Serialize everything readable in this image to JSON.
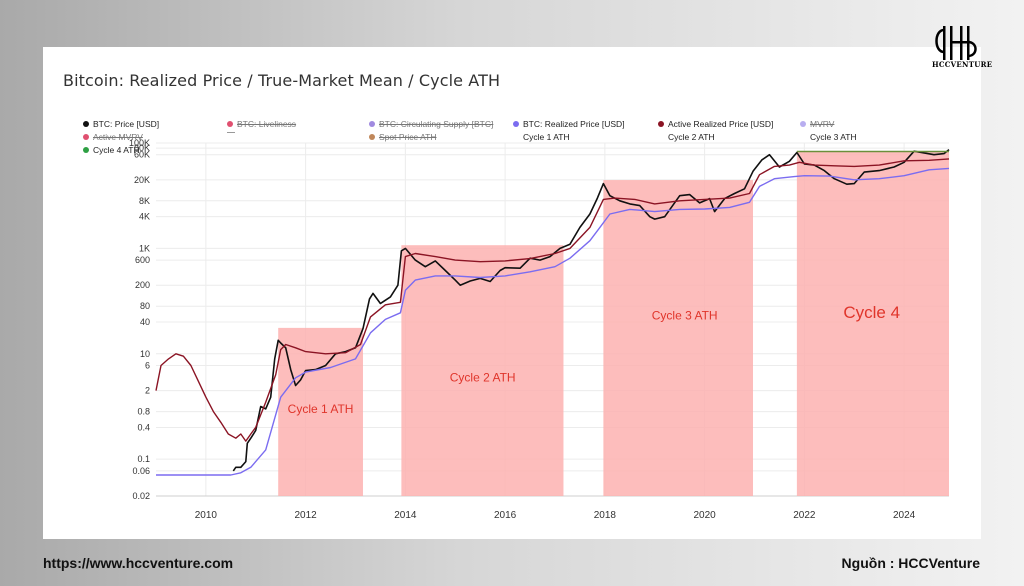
{
  "brand": {
    "logo_text": "HCCVENTURE"
  },
  "footer": {
    "url": "https://www.hccventure.com",
    "source": "Nguồn : HCCVenture"
  },
  "colors": {
    "price": "#111111",
    "realized_price": "#7b6cf0",
    "active_realized_price": "#8b1424",
    "spot_ath": "#6b8f3a",
    "cycle_fill": "#fdb2b0",
    "cycle_label": "#e0352b"
  },
  "chart_data": {
    "type": "line",
    "title": "Bitcoin: Realized Price / True-Market Mean / Cycle ATH",
    "y_scale": "log",
    "ylim": [
      0.02,
      100000
    ],
    "y_ticks": [
      {
        "v": 100000,
        "label": "100K"
      },
      {
        "v": 80000,
        "label": "80K"
      },
      {
        "v": 60000,
        "label": "60K"
      },
      {
        "v": 20000,
        "label": "20K"
      },
      {
        "v": 8000,
        "label": "8K"
      },
      {
        "v": 4000,
        "label": "4K"
      },
      {
        "v": 1000,
        "label": "1K"
      },
      {
        "v": 600,
        "label": "600"
      },
      {
        "v": 200,
        "label": "200"
      },
      {
        "v": 80,
        "label": "80"
      },
      {
        "v": 40,
        "label": "40"
      },
      {
        "v": 10,
        "label": "10"
      },
      {
        "v": 6,
        "label": "6"
      },
      {
        "v": 2,
        "label": "2"
      },
      {
        "v": 0.8,
        "label": "0.8"
      },
      {
        "v": 0.4,
        "label": "0.4"
      },
      {
        "v": 0.1,
        "label": "0.1"
      },
      {
        "v": 0.06,
        "label": "0.06"
      },
      {
        "v": 0.02,
        "label": "0.02"
      }
    ],
    "xlim": [
      2009.0,
      2024.9
    ],
    "x_ticks": [
      {
        "v": 2010,
        "label": "2010"
      },
      {
        "v": 2012,
        "label": "2012"
      },
      {
        "v": 2014,
        "label": "2014"
      },
      {
        "v": 2016,
        "label": "2016"
      },
      {
        "v": 2018,
        "label": "2018"
      },
      {
        "v": 2020,
        "label": "2020"
      },
      {
        "v": 2022,
        "label": "2022"
      },
      {
        "v": 2024,
        "label": "2024"
      }
    ],
    "grid": true,
    "legend": [
      {
        "label": "BTC: Price [USD]",
        "color": "#111111",
        "active": true
      },
      {
        "label": "BTC: Liveliness",
        "color": "#e05070",
        "active": false
      },
      {
        "label": "BTC: Circulating Supply [BTC]",
        "color": "#a08ae0",
        "active": false
      },
      {
        "label": "BTC: Realized Price [USD]",
        "color": "#7b6cf0",
        "active": true
      },
      {
        "label": "Active Realized Price [USD]",
        "color": "#8b1424",
        "active": true
      },
      {
        "label": "MVRV",
        "color": "#b8aef0",
        "active": false
      },
      {
        "label": "Active MVRV",
        "color": "#e05070",
        "active": false
      },
      {
        "label": "",
        "color": "#999999",
        "active": false,
        "dash": true
      },
      {
        "label": "Spot Price ATH",
        "color": "#c0875a",
        "active": false
      },
      {
        "label": "Cycle 1 ATH",
        "color": "",
        "active": true
      },
      {
        "label": "Cycle 2 ATH",
        "color": "",
        "active": true
      },
      {
        "label": "Cycle 3 ATH",
        "color": "",
        "active": true
      },
      {
        "label": "Cycle 4 ATH",
        "color": "#2ea043",
        "active": true
      }
    ],
    "cycles": [
      {
        "label": "Cycle 1 ATH",
        "x0": 2011.45,
        "x1": 2013.15,
        "y_top": 31,
        "label_x": 2012.3,
        "label_y": 0.75
      },
      {
        "label": "Cycle 2 ATH",
        "x0": 2013.92,
        "x1": 2017.17,
        "y_top": 1150,
        "label_x": 2015.55,
        "label_y": 3.0
      },
      {
        "label": "Cycle 3 ATH",
        "x0": 2017.97,
        "x1": 2020.97,
        "y_top": 19800,
        "label_x": 2019.6,
        "label_y": 45
      },
      {
        "label": "Cycle 4",
        "x0": 2021.85,
        "x1": 2024.9,
        "y_top": 69000,
        "label_x": 2023.35,
        "label_y": 48
      }
    ],
    "series": [
      {
        "name": "BTC: Price [USD]",
        "color": "#111111",
        "x": [
          2010.55,
          2010.6,
          2010.7,
          2010.8,
          2010.83,
          2010.9,
          2011.0,
          2011.1,
          2011.2,
          2011.3,
          2011.38,
          2011.45,
          2011.5,
          2011.6,
          2011.7,
          2011.8,
          2011.9,
          2012.0,
          2012.2,
          2012.4,
          2012.6,
          2012.8,
          2013.0,
          2013.15,
          2013.28,
          2013.35,
          2013.5,
          2013.7,
          2013.85,
          2013.92,
          2014.0,
          2014.2,
          2014.4,
          2014.6,
          2014.8,
          2015.0,
          2015.1,
          2015.3,
          2015.5,
          2015.7,
          2015.9,
          2016.0,
          2016.3,
          2016.5,
          2016.7,
          2016.9,
          2017.1,
          2017.3,
          2017.5,
          2017.7,
          2017.85,
          2017.97,
          2018.1,
          2018.3,
          2018.5,
          2018.7,
          2018.9,
          2019.0,
          2019.2,
          2019.5,
          2019.7,
          2019.9,
          2020.1,
          2020.2,
          2020.4,
          2020.6,
          2020.8,
          2020.97,
          2021.15,
          2021.3,
          2021.5,
          2021.7,
          2021.85,
          2022.0,
          2022.2,
          2022.4,
          2022.6,
          2022.85,
          2023.0,
          2023.2,
          2023.5,
          2023.8,
          2024.0,
          2024.2,
          2024.4,
          2024.6,
          2024.8,
          2024.9
        ],
        "y": [
          0.06,
          0.07,
          0.07,
          0.09,
          0.2,
          0.25,
          0.35,
          1.0,
          0.9,
          1.5,
          8.0,
          18.0,
          16.0,
          13.0,
          5.0,
          2.5,
          3.2,
          4.8,
          5.0,
          6.0,
          10.0,
          11.0,
          13.0,
          30.0,
          110.0,
          140.0,
          90.0,
          120.0,
          200.0,
          900.0,
          1000.0,
          600.0,
          450.0,
          580.0,
          380.0,
          250.0,
          200.0,
          240.0,
          270.0,
          235.0,
          380.0,
          430.0,
          420.0,
          650.0,
          600.0,
          700.0,
          1000.0,
          1200.0,
          2500.0,
          4500.0,
          9000.0,
          17000.0,
          10000.0,
          8000.0,
          7000.0,
          6500.0,
          4000.0,
          3600.0,
          4000.0,
          10000.0,
          10500.0,
          7300.0,
          8800.0,
          5000.0,
          8800.0,
          11000.0,
          13500.0,
          29000.0,
          48000.0,
          60000.0,
          35000.0,
          45000.0,
          66000.0,
          40000.0,
          38000.0,
          30000.0,
          21000.0,
          16500.0,
          17000.0,
          28000.0,
          30000.0,
          35000.0,
          43000.0,
          70000.0,
          65000.0,
          60000.0,
          63000.0,
          75000.0
        ]
      },
      {
        "name": "BTC: Realized Price [USD]",
        "color": "#7b6cf0",
        "x": [
          2009.0,
          2010.0,
          2010.5,
          2010.7,
          2010.9,
          2011.2,
          2011.5,
          2011.8,
          2012.0,
          2012.5,
          2013.0,
          2013.3,
          2013.6,
          2013.9,
          2014.0,
          2014.2,
          2014.6,
          2015.0,
          2015.5,
          2016.0,
          2016.5,
          2017.0,
          2017.3,
          2017.7,
          2017.9,
          2018.1,
          2018.5,
          2019.0,
          2019.5,
          2020.0,
          2020.5,
          2020.9,
          2021.1,
          2021.4,
          2021.8,
          2022.0,
          2022.5,
          2023.0,
          2023.5,
          2024.0,
          2024.5,
          2024.9
        ],
        "y": [
          0.05,
          0.05,
          0.05,
          0.055,
          0.07,
          0.15,
          1.5,
          3.5,
          4.5,
          5.5,
          8.0,
          25.0,
          45.0,
          60.0,
          160.0,
          250.0,
          300.0,
          300.0,
          280.0,
          300.0,
          360.0,
          450.0,
          650.0,
          1400.0,
          2500.0,
          4500.0,
          5500.0,
          5000.0,
          5500.0,
          5600.0,
          6000.0,
          7500.0,
          15000.0,
          21000.0,
          23000.0,
          24000.0,
          23500.0,
          20000.0,
          21000.0,
          24000.0,
          31000.0,
          33000.0
        ]
      },
      {
        "name": "Active Realized Price [USD]",
        "color": "#8b1424",
        "x": [
          2009.0,
          2009.1,
          2009.25,
          2009.4,
          2009.55,
          2009.7,
          2009.85,
          2010.0,
          2010.15,
          2010.3,
          2010.45,
          2010.6,
          2010.7,
          2010.8,
          2010.9,
          2011.0,
          2011.2,
          2011.4,
          2011.5,
          2011.6,
          2011.8,
          2012.0,
          2012.4,
          2012.8,
          2013.1,
          2013.3,
          2013.6,
          2013.9,
          2014.0,
          2014.2,
          2014.6,
          2015.0,
          2015.5,
          2016.0,
          2016.5,
          2017.0,
          2017.3,
          2017.7,
          2017.97,
          2018.2,
          2018.6,
          2019.0,
          2019.5,
          2020.0,
          2020.5,
          2020.9,
          2021.1,
          2021.4,
          2021.7,
          2021.9,
          2022.2,
          2022.6,
          2023.0,
          2023.5,
          2024.0,
          2024.5,
          2024.9
        ],
        "y": [
          2.0,
          6.0,
          8.0,
          10.0,
          9.0,
          6.0,
          3.0,
          1.5,
          0.8,
          0.5,
          0.3,
          0.25,
          0.3,
          0.22,
          0.3,
          0.4,
          1.2,
          4.0,
          12.0,
          15.0,
          13.0,
          11.0,
          10.0,
          10.5,
          15.0,
          50.0,
          85.0,
          95.0,
          700.0,
          800.0,
          700.0,
          600.0,
          560.0,
          580.0,
          640.0,
          800.0,
          1000.0,
          2500.0,
          8500.0,
          9000.0,
          8500.0,
          7000.0,
          8000.0,
          8500.0,
          9000.0,
          11000.0,
          25000.0,
          36000.0,
          38000.0,
          43000.0,
          38000.0,
          37000.0,
          36000.0,
          38000.0,
          46000.0,
          47000.0,
          50000.0
        ]
      },
      {
        "name": "Cycle 4 ATH",
        "color": "#6b8f3a",
        "x": [
          2021.85,
          2024.9
        ],
        "y": [
          69000,
          69000
        ]
      }
    ]
  }
}
